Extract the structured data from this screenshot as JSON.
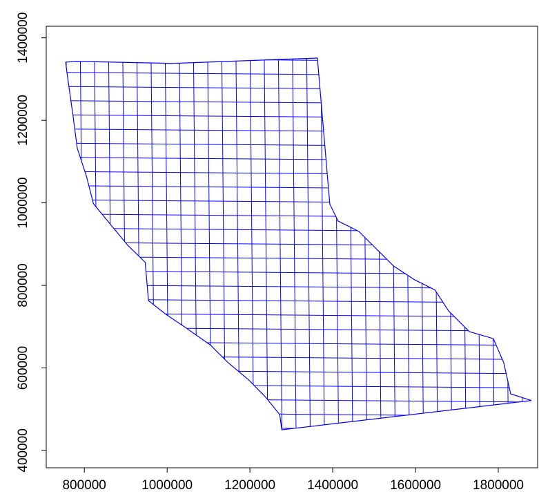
{
  "chart_data": {
    "type": "map",
    "x": [
      755000,
      780000,
      1013000,
      1363000,
      1393000,
      1413000,
      1463000,
      1505000,
      1547000,
      1597000,
      1647000,
      1680000,
      1730000,
      1788000,
      1813000,
      1830000,
      1880000,
      1277000,
      1272000,
      1238000,
      1197000,
      1147000,
      1105000,
      1047000,
      997000,
      955000,
      947000,
      905000,
      863000,
      822000,
      805000,
      783000,
      772000,
      758000
    ],
    "values": [
      1341000,
      1343000,
      1338000,
      1351000,
      997000,
      956000,
      931000,
      889000,
      847000,
      814000,
      789000,
      738000,
      688000,
      671000,
      613000,
      537000,
      521000,
      450000,
      487000,
      529000,
      571000,
      613000,
      655000,
      696000,
      730000,
      763000,
      856000,
      897000,
      948000,
      998000,
      1065000,
      1132000,
      1216000,
      1316000
    ],
    "color": "#0000ff",
    "xlim": [
      708000,
      1895000
    ],
    "ylim": [
      358000,
      1428000
    ],
    "xticks": [
      800000,
      1000000,
      1200000,
      1400000,
      1600000,
      1800000
    ],
    "yticks": [
      400000,
      600000,
      800000,
      1000000,
      1200000,
      1400000
    ]
  }
}
